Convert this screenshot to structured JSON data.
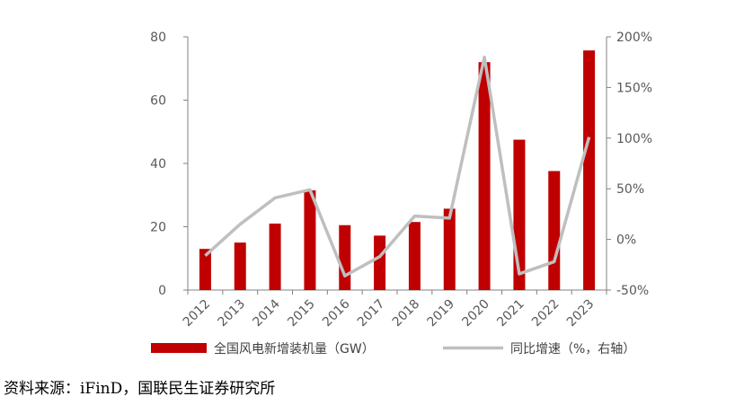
{
  "chart_data": {
    "type": "bar",
    "categories": [
      "2012",
      "2013",
      "2014",
      "2015",
      "2016",
      "2017",
      "2018",
      "2019",
      "2020",
      "2021",
      "2022",
      "2023"
    ],
    "series": [
      {
        "name": "全国风电新增装机量（GW）",
        "type": "bar",
        "axis": "left",
        "values": [
          13,
          15,
          21,
          31.5,
          20.5,
          17.2,
          21.5,
          25.7,
          72,
          47.5,
          37.6,
          75.7
        ]
      },
      {
        "name": "同比增速（%，右轴）",
        "type": "line",
        "axis": "right",
        "values": [
          -16,
          15,
          41,
          49,
          -36,
          -17,
          23,
          21,
          180,
          -34,
          -22,
          101
        ]
      }
    ],
    "y_left": {
      "lim": [
        0,
        80
      ],
      "ticks": [
        "0",
        "20",
        "40",
        "60",
        "80"
      ]
    },
    "y_right": {
      "lim": [
        -50,
        200
      ],
      "ticks": [
        "-50%",
        "0%",
        "50%",
        "100%",
        "150%",
        "200%"
      ]
    },
    "legend_position": "bottom",
    "colors": {
      "bar": "#c00000",
      "line": "#bfbfbf",
      "axis": "#808080",
      "text": "#595959"
    }
  },
  "source_note": "资料来源：iFinD，国联民生证券研究所"
}
